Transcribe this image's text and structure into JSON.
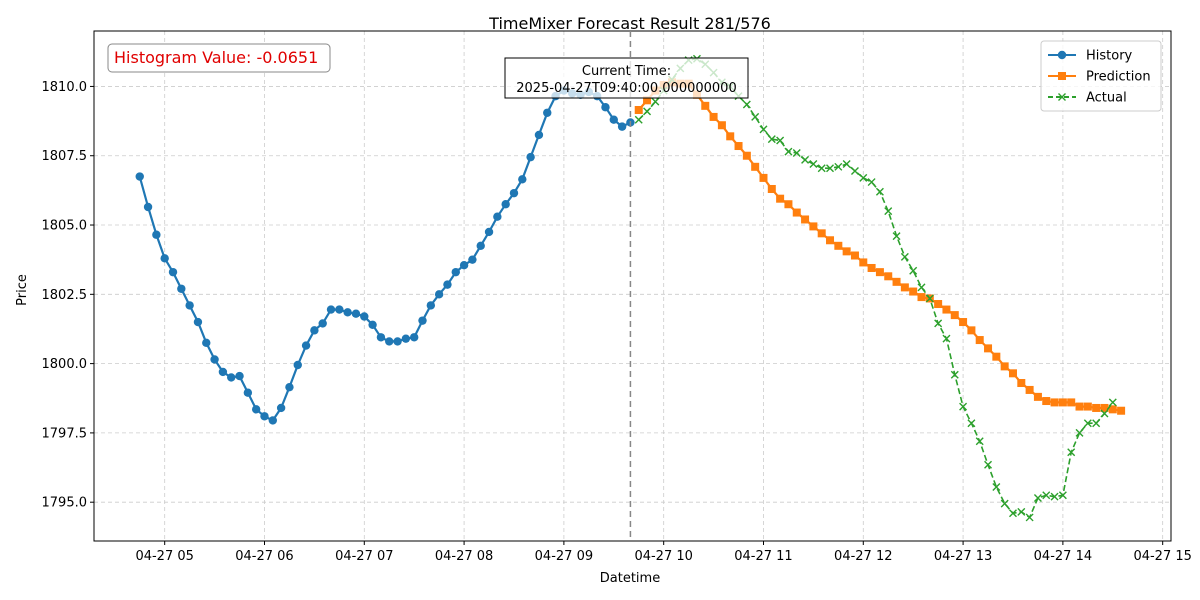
{
  "chart_data": {
    "type": "line",
    "title": "TimeMixer Forecast Result 281/576",
    "xlabel": "Datetime",
    "ylabel": "Price",
    "x_ticks": [
      "04-27 05",
      "04-27 06",
      "04-27 07",
      "04-27 08",
      "04-27 09",
      "04-27 10",
      "04-27 11",
      "04-27 12",
      "04-27 13",
      "04-27 14",
      "04-27 15"
    ],
    "y_ticks": [
      "1795.0",
      "1797.5",
      "1800.0",
      "1802.5",
      "1805.0",
      "1807.5",
      "1810.0"
    ],
    "xlim": [
      "2025-04-27T04:17:30",
      "2025-04-27T15:05:00"
    ],
    "ylim": [
      1793.6,
      1812.0
    ],
    "grid": true,
    "legend_position": "top-right",
    "current_time": "2025-04-27T09:40:00",
    "current_time_label": "Current Time:\n2025-04-27T09:40:00.000000000",
    "histogram_label": "Histogram Value: -0.0651",
    "histogram_color": "#e00000",
    "series": [
      {
        "name": "History",
        "color": "#1f77b4",
        "marker": "circle",
        "style": "solid",
        "start": "2025-04-27T04:45:00",
        "interval_minutes": 5,
        "values": [
          1806.75,
          1805.65,
          1804.65,
          1803.8,
          1803.3,
          1802.7,
          1802.1,
          1801.5,
          1800.75,
          1800.15,
          1799.7,
          1799.5,
          1799.55,
          1798.95,
          1798.35,
          1798.1,
          1797.95,
          1798.4,
          1799.15,
          1799.95,
          1800.65,
          1801.2,
          1801.45,
          1801.95,
          1801.95,
          1801.85,
          1801.8,
          1801.7,
          1801.4,
          1800.95,
          1800.8,
          1800.8,
          1800.9,
          1800.95,
          1801.55,
          1802.1,
          1802.5,
          1802.85,
          1803.3,
          1803.55,
          1803.75,
          1804.25,
          1804.75,
          1805.3,
          1805.75,
          1806.15,
          1806.65,
          1807.45,
          1808.25,
          1809.05,
          1809.65,
          1809.85,
          1809.75,
          1809.7,
          1809.8,
          1809.65,
          1809.25,
          1808.8,
          1808.55,
          1808.7
        ]
      },
      {
        "name": "Prediction",
        "color": "#ff7f0e",
        "marker": "square",
        "style": "solid",
        "start": "2025-04-27T09:45:00",
        "interval_minutes": 5,
        "values": [
          1809.15,
          1809.5,
          1809.85,
          1810.05,
          1810.15,
          1810.1,
          1810.1,
          1809.7,
          1809.3,
          1808.9,
          1808.6,
          1808.2,
          1807.85,
          1807.5,
          1807.1,
          1806.7,
          1806.3,
          1805.95,
          1805.75,
          1805.45,
          1805.2,
          1804.95,
          1804.7,
          1804.45,
          1804.25,
          1804.05,
          1803.9,
          1803.65,
          1803.45,
          1803.3,
          1803.15,
          1802.95,
          1802.75,
          1802.6,
          1802.4,
          1802.35,
          1802.15,
          1801.95,
          1801.75,
          1801.5,
          1801.2,
          1800.85,
          1800.55,
          1800.25,
          1799.9,
          1799.65,
          1799.3,
          1799.05,
          1798.8,
          1798.65,
          1798.6,
          1798.6,
          1798.6,
          1798.45,
          1798.45,
          1798.4,
          1798.4,
          1798.35,
          1798.3
        ]
      },
      {
        "name": "Actual",
        "color": "#2ca02c",
        "marker": "x",
        "style": "dashed",
        "start": "2025-04-27T09:45:00",
        "interval_minutes": 5,
        "values": [
          1808.8,
          1809.1,
          1809.45,
          1809.85,
          1810.25,
          1810.65,
          1810.95,
          1811.0,
          1810.8,
          1810.5,
          1810.15,
          1810.0,
          1809.65,
          1809.35,
          1808.9,
          1808.45,
          1808.1,
          1808.05,
          1807.65,
          1807.6,
          1807.35,
          1807.2,
          1807.05,
          1807.05,
          1807.1,
          1807.2,
          1806.95,
          1806.7,
          1806.55,
          1806.2,
          1805.5,
          1804.6,
          1803.85,
          1803.35,
          1802.75,
          1802.35,
          1801.45,
          1800.9,
          1799.6,
          1798.45,
          1797.85,
          1797.2,
          1796.35,
          1795.55,
          1794.95,
          1794.6,
          1794.65,
          1794.45,
          1795.15,
          1795.25,
          1795.2,
          1795.25,
          1796.8,
          1797.5,
          1797.85,
          1797.85,
          1798.2,
          1798.6
        ]
      }
    ]
  }
}
